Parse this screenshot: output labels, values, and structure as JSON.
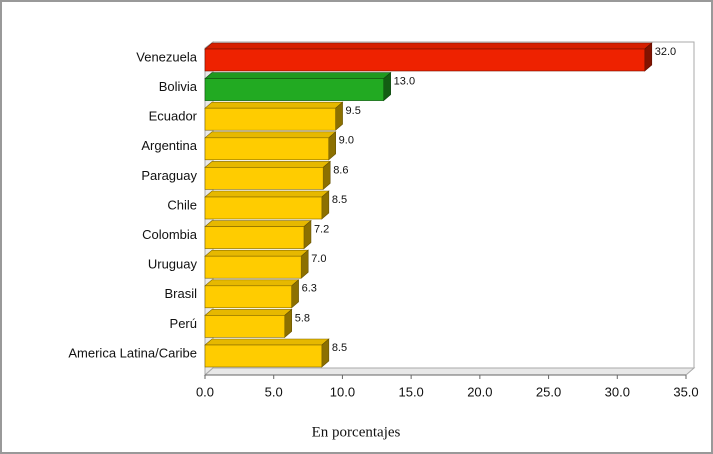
{
  "chart_data": {
    "type": "bar",
    "orientation": "horizontal",
    "x_label": "En porcentajes",
    "categories": [
      "Venezuela",
      "Bolivia",
      "Ecuador",
      "Argentina",
      "Paraguay",
      "Chile",
      "Colombia",
      "Uruguay",
      "Brasil",
      "Perú",
      "America Latina/Caribe"
    ],
    "values": [
      32,
      13,
      9.5,
      9,
      8.6,
      8.5,
      7.2,
      7,
      6.3,
      5.8,
      8.5
    ],
    "value_labels": [
      "32.0",
      "13.0",
      "9.5",
      "9.0",
      "8.6",
      "8.5",
      "7.2",
      "7.0",
      "6.3",
      "5.8",
      "8.5"
    ],
    "colors": [
      "#ee2200",
      "#22aa22",
      "#ffcc00",
      "#ffcc00",
      "#ffcc00",
      "#ffcc00",
      "#ffcc00",
      "#ffcc00",
      "#ffcc00",
      "#ffcc00",
      "#ffcc00"
    ],
    "xlim": [
      0,
      35
    ],
    "xticks": [
      {
        "value": 0,
        "label": "0.0"
      },
      {
        "value": 5,
        "label": "5.0"
      },
      {
        "value": 10,
        "label": "10.0"
      },
      {
        "value": 15,
        "label": "15.0"
      },
      {
        "value": 20,
        "label": "20.0"
      },
      {
        "value": 25,
        "label": "25.0"
      },
      {
        "value": 30,
        "label": "30.0"
      },
      {
        "value": 35,
        "label": "35.0"
      }
    ]
  }
}
